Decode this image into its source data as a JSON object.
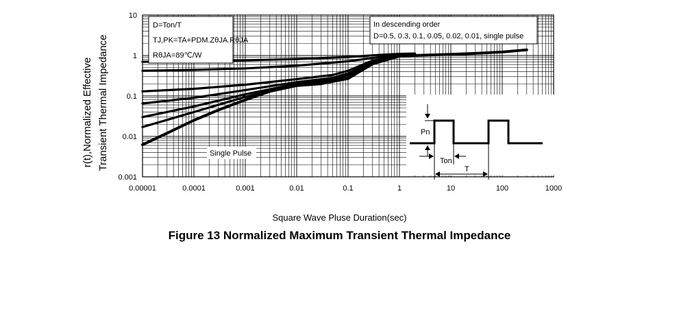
{
  "chart_data": {
    "type": "line",
    "title": "Figure 13 Normalized Maximum Transient Thermal Impedance",
    "xlabel": "Square Wave Pluse Duration(sec)",
    "ylabel_line1": "r(t),Normalized Effective",
    "ylabel_line2": "Transient Thermal Impedance",
    "x_scale": "log",
    "y_scale": "log",
    "xlim": [
      1e-05,
      1000
    ],
    "ylim": [
      0.001,
      10
    ],
    "grid": true,
    "x_ticks": [
      1e-05,
      0.0001,
      0.001,
      0.01,
      0.1,
      1,
      10,
      100,
      1000
    ],
    "x_tick_labels": [
      "0.00001",
      "0.0001",
      "0.001",
      "0.01",
      "0.1",
      "1",
      "10",
      "100",
      "1000"
    ],
    "y_ticks": [
      0.001,
      0.01,
      0.1,
      1,
      10
    ],
    "y_tick_labels": [
      "0.001",
      "0.01",
      "0.1",
      "1",
      "10"
    ],
    "annotations": {
      "formula_d": "D=Ton/T",
      "formula_tj": "TJ,PK=TA+PDM.ZθJA.RθJA",
      "formula_r": "RθJA=89℃/W",
      "order_line1": "In descending order",
      "order_line2": "D=0.5, 0.3, 0.1, 0.05, 0.02, 0.01, single pulse",
      "single_pulse_label": "Single Pulse",
      "inset_pn": "Pn",
      "inset_ton": "Ton",
      "inset_t": "T"
    },
    "series": [
      {
        "name": "D=0.5",
        "x": [
          1e-05,
          0.0001,
          0.001,
          0.01,
          0.1,
          0.5,
          1,
          2
        ],
        "y": [
          0.7,
          0.72,
          0.76,
          0.82,
          0.92,
          1.05,
          1.1,
          1.12
        ]
      },
      {
        "name": "D=0.3",
        "x": [
          1e-05,
          0.0001,
          0.001,
          0.01,
          0.1,
          0.5,
          1,
          2
        ],
        "y": [
          0.42,
          0.44,
          0.48,
          0.56,
          0.72,
          0.95,
          1.05,
          1.1
        ]
      },
      {
        "name": "D=0.1",
        "x": [
          1e-05,
          0.0001,
          0.001,
          0.01,
          0.05,
          0.1,
          0.3,
          1,
          2
        ],
        "y": [
          0.13,
          0.15,
          0.19,
          0.26,
          0.33,
          0.42,
          0.75,
          1.02,
          1.08
        ]
      },
      {
        "name": "D=0.05",
        "x": [
          1e-05,
          0.0001,
          0.001,
          0.01,
          0.05,
          0.1,
          0.3,
          1,
          2
        ],
        "y": [
          0.065,
          0.09,
          0.14,
          0.22,
          0.28,
          0.36,
          0.7,
          1.0,
          1.06
        ]
      },
      {
        "name": "D=0.02",
        "x": [
          1e-05,
          0.0001,
          0.001,
          0.01,
          0.05,
          0.1,
          0.3,
          1,
          2
        ],
        "y": [
          0.03,
          0.055,
          0.11,
          0.2,
          0.25,
          0.33,
          0.68,
          0.99,
          1.05
        ]
      },
      {
        "name": "D=0.01",
        "x": [
          1e-05,
          0.0001,
          0.001,
          0.01,
          0.05,
          0.1,
          0.3,
          1,
          2
        ],
        "y": [
          0.017,
          0.04,
          0.095,
          0.19,
          0.24,
          0.32,
          0.66,
          0.98,
          1.04
        ]
      },
      {
        "name": "single pulse",
        "x": [
          1e-05,
          3e-05,
          0.0001,
          0.0003,
          0.001,
          0.003,
          0.01,
          0.03,
          0.1,
          0.3,
          1,
          3,
          10,
          30,
          100,
          300
        ],
        "y": [
          0.0062,
          0.012,
          0.025,
          0.045,
          0.08,
          0.13,
          0.18,
          0.2,
          0.27,
          0.62,
          0.97,
          1.02,
          1.07,
          1.13,
          1.22,
          1.38
        ]
      }
    ]
  }
}
